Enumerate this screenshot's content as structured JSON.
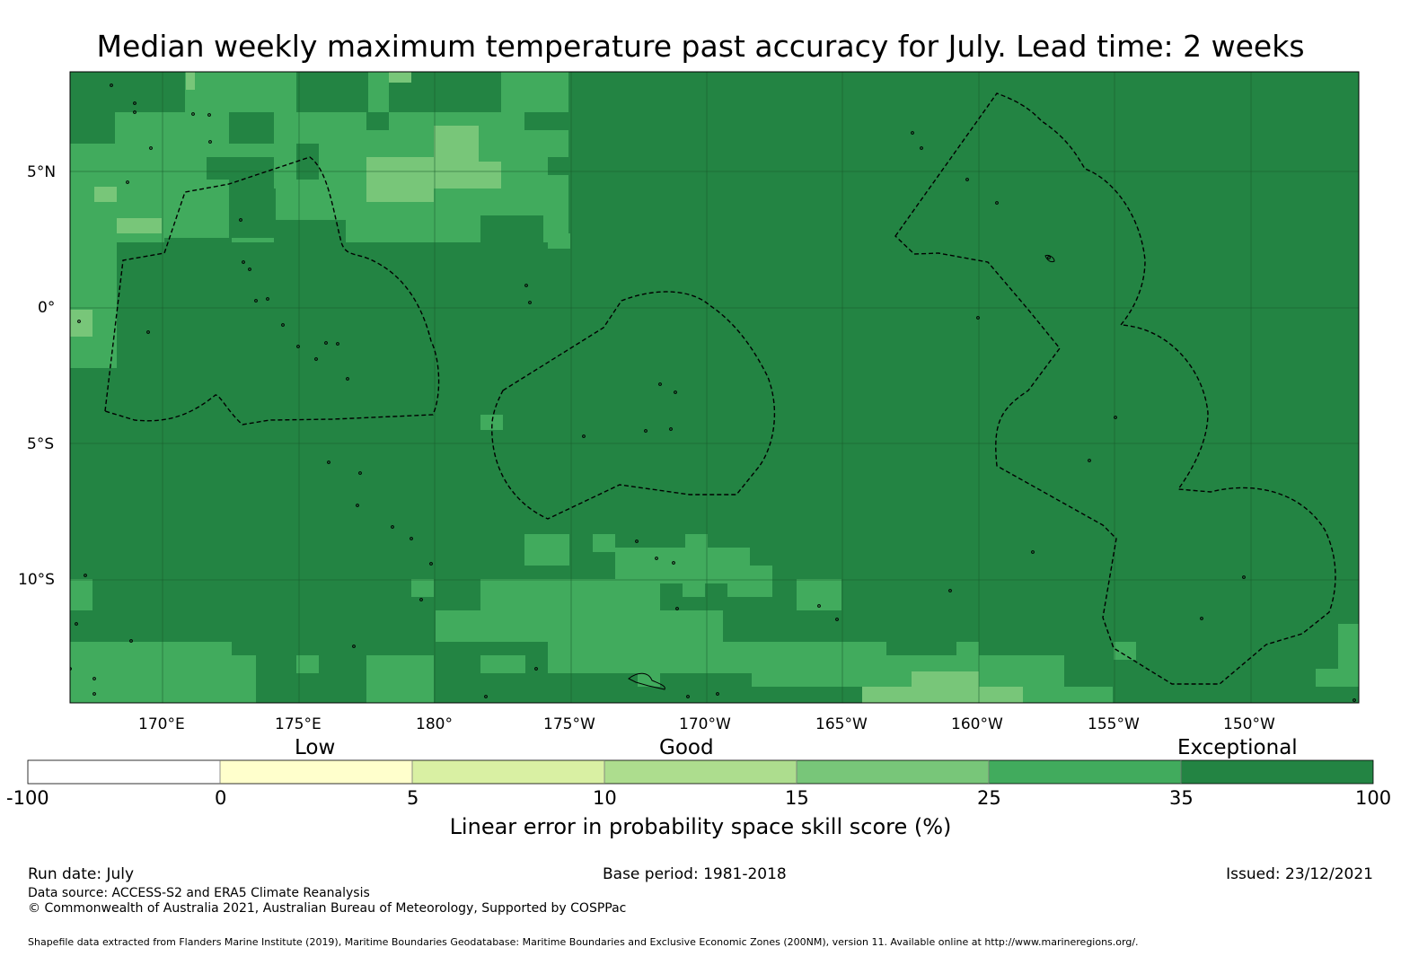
{
  "title": "Median weekly maximum temperature past accuracy for July. Lead time: 2 weeks",
  "map": {
    "lon_labels": [
      "170°E",
      "175°E",
      "180°",
      "175°W",
      "170°W",
      "165°W",
      "160°W",
      "155°W",
      "150°W"
    ],
    "lat_labels": [
      "5°N",
      "0°",
      "5°S",
      "10°S"
    ]
  },
  "colorbar": {
    "categories": [
      "Low",
      "Good",
      "Exceptional"
    ],
    "ticks": [
      "-100",
      "0",
      "5",
      "10",
      "15",
      "25",
      "35",
      "100"
    ],
    "colors": [
      "#ffffff",
      "#ffffcc",
      "#d9f0a3",
      "#addd8e",
      "#78c679",
      "#41ab5d",
      "#238443"
    ],
    "label": "Linear error in probability space skill score (%)"
  },
  "footer": {
    "run_date": "Run date: July",
    "base_period": "Base period: 1981-2018",
    "issued": "Issued: 23/12/2021",
    "data_source": "Data source: ACCESS-S2 and ERA5 Climate Reanalysis",
    "copyright": "© Commonwealth of Australia 2021, Australian Bureau of Meteorology, Supported by COSPPac",
    "shapefile": "Shapefile data extracted from Flanders Marine Institute (2019), Maritime Boundaries Geodatabase: Maritime Boundaries and Exclusive Economic Zones (200NM), version 11. Available online at http://www.marineregions.org/."
  }
}
